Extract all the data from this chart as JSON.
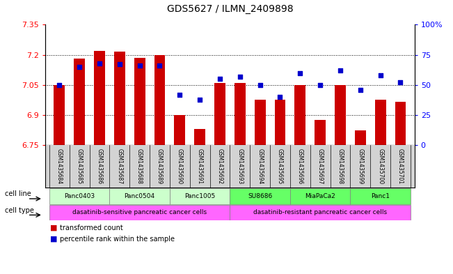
{
  "title": "GDS5627 / ILMN_2409898",
  "samples": [
    "GSM1435684",
    "GSM1435685",
    "GSM1435686",
    "GSM1435687",
    "GSM1435688",
    "GSM1435689",
    "GSM1435690",
    "GSM1435691",
    "GSM1435692",
    "GSM1435693",
    "GSM1435694",
    "GSM1435695",
    "GSM1435696",
    "GSM1435697",
    "GSM1435698",
    "GSM1435699",
    "GSM1435700",
    "GSM1435701"
  ],
  "transformed_counts": [
    7.05,
    7.18,
    7.22,
    7.215,
    7.185,
    7.2,
    6.9,
    6.83,
    7.06,
    7.06,
    6.975,
    6.975,
    7.05,
    6.875,
    7.05,
    6.825,
    6.975,
    6.965
  ],
  "percentile_ranks": [
    50,
    65,
    68,
    67,
    66,
    66,
    42,
    38,
    55,
    57,
    50,
    40,
    60,
    50,
    62,
    46,
    58,
    52
  ],
  "ylim": [
    6.75,
    7.35
  ],
  "yticks": [
    6.75,
    6.9,
    7.05,
    7.2,
    7.35
  ],
  "ytick_labels": [
    "6.75",
    "6.9",
    "7.05",
    "7.2",
    "7.35"
  ],
  "right_yticks": [
    0,
    25,
    50,
    75,
    100
  ],
  "right_ytick_labels": [
    "0",
    "25",
    "50",
    "75",
    "100%"
  ],
  "bar_color": "#CC0000",
  "dot_color": "#0000CC",
  "bar_width": 0.55,
  "cell_lines": [
    {
      "label": "Panc0403",
      "start": 0,
      "end": 2,
      "color": "#ccffcc"
    },
    {
      "label": "Panc0504",
      "start": 3,
      "end": 5,
      "color": "#ccffcc"
    },
    {
      "label": "Panc1005",
      "start": 6,
      "end": 8,
      "color": "#ccffcc"
    },
    {
      "label": "SU8686",
      "start": 9,
      "end": 11,
      "color": "#66ff66"
    },
    {
      "label": "MiaPaCa2",
      "start": 12,
      "end": 14,
      "color": "#66ff66"
    },
    {
      "label": "Panc1",
      "start": 15,
      "end": 17,
      "color": "#66ff66"
    }
  ],
  "cell_types": [
    {
      "label": "dasatinib-sensitive pancreatic cancer cells",
      "start": 0,
      "end": 8,
      "color": "#ff66ff"
    },
    {
      "label": "dasatinib-resistant pancreatic cancer cells",
      "start": 9,
      "end": 17,
      "color": "#ff66ff"
    }
  ],
  "legend_items": [
    {
      "label": "transformed count",
      "color": "#CC0000"
    },
    {
      "label": "percentile rank within the sample",
      "color": "#0000CC"
    }
  ],
  "fig_width": 6.51,
  "fig_height": 3.93,
  "dpi": 100
}
